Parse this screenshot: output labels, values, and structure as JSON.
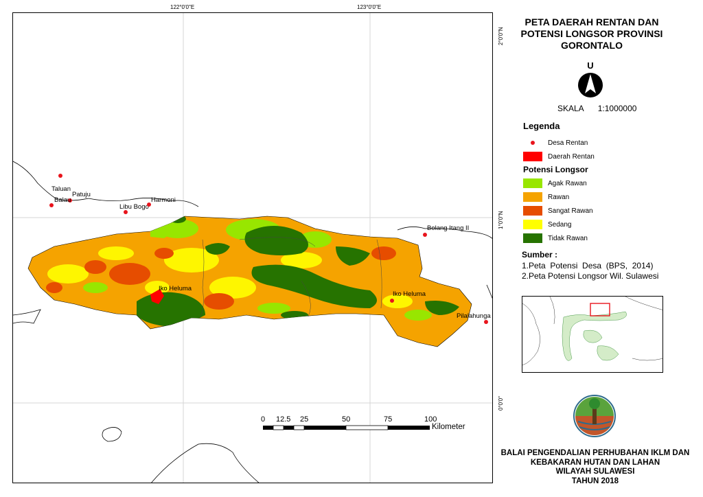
{
  "map": {
    "grid_labels": {
      "top": [
        "122°0'0\"E",
        "123°0'0\"E"
      ],
      "right": [
        "2°0'0\"N",
        "1°0'0\"N",
        "0°0'0\""
      ]
    },
    "places": [
      {
        "name": "Taluan"
      },
      {
        "name": "Patuju"
      },
      {
        "name": "Balau"
      },
      {
        "name": "Libu Bogo"
      },
      {
        "name": "Harmoni"
      },
      {
        "name": "Bolang Itang II"
      },
      {
        "name": "Iko Heluma"
      },
      {
        "name": "Iko Heluma"
      },
      {
        "name": "Pilalahunga"
      }
    ],
    "scale_bar": {
      "ticks": [
        "0",
        "12.5",
        "25",
        "50",
        "75",
        "100"
      ],
      "unit": "Kilometer"
    }
  },
  "panel": {
    "title": "PETA DAERAH RENTAN DAN POTENSI LONGSOR PROVINSI GORONTALO",
    "north_letter": "U",
    "scale_label": "SKALA",
    "scale_value": "1:1000000",
    "legend_title": "Legenda",
    "legend_rentan": [
      {
        "label": "Desa Rentan",
        "color": "#e8141c"
      },
      {
        "label": "Daerah Rentan",
        "color": "#ff0000"
      }
    ],
    "potensi_title": "Potensi Longsor",
    "potensi_items": [
      {
        "label": "Agak Rawan",
        "color": "#98e600"
      },
      {
        "label": "Rawan",
        "color": "#f5a300"
      },
      {
        "label": "Sangat Rawan",
        "color": "#e64d00"
      },
      {
        "label": "Sedang",
        "color": "#ffff00"
      },
      {
        "label": "Tidak Rawan",
        "color": "#267300"
      }
    ],
    "sumber_title": "Sumber :",
    "sumber_lines": [
      "1.Peta  Potensi  Desa  (BPS,  2014)",
      "2.Peta Potensi Longsor Wil. Sulawesi"
    ],
    "footer": [
      "BALAI PENGENDALIAN PERHUBAHAN IKLM DAN",
      "KEBAKARAN HUTAN DAN LAHAN",
      "WILAYAH SULAWESI",
      "TAHUN 2018"
    ]
  }
}
